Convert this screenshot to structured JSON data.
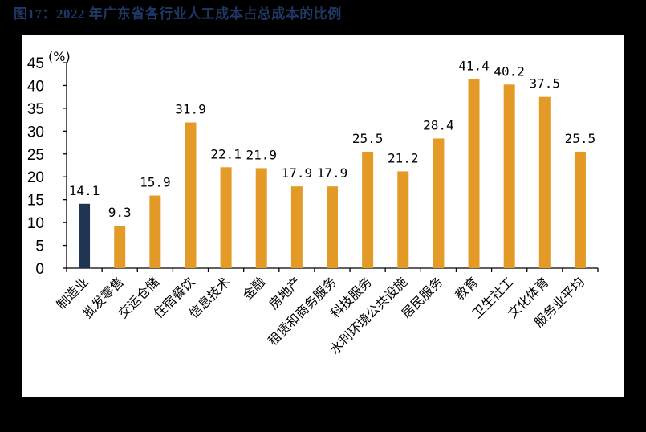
{
  "title": "图17：2022 年广东省各行业人工成本占总成本的比例",
  "chart_data": {
    "type": "bar",
    "title": "图17：2022 年广东省各行业人工成本占总成本的比例",
    "xlabel": "",
    "ylabel": "(%)",
    "ylim": [
      0,
      45
    ],
    "yticks": [
      0,
      5,
      10,
      15,
      20,
      25,
      30,
      35,
      40,
      45
    ],
    "grid": false,
    "legend": "none",
    "categories": [
      "制造业",
      "批发零售",
      "交运仓储",
      "住宿餐饮",
      "信息技术",
      "金融",
      "房地产",
      "租赁和商务服务",
      "科技服务",
      "水利环境公共设施",
      "居民服务",
      "教育",
      "卫生社工",
      "文化体育",
      "服务业平均"
    ],
    "values": [
      14.1,
      9.3,
      15.9,
      31.9,
      22.1,
      21.9,
      17.9,
      17.9,
      25.5,
      21.2,
      28.4,
      41.4,
      40.2,
      37.5,
      25.5
    ],
    "value_labels": [
      "14.1",
      "9.3",
      "15.9",
      "31.9",
      "22.1",
      "21.9",
      "17.9",
      "17.9",
      "25.5",
      "21.2",
      "28.4",
      "41.4",
      "40.2",
      "37.5",
      "25.5"
    ],
    "colors": [
      "#1f3552",
      "#e39a27",
      "#e39a27",
      "#e39a27",
      "#e39a27",
      "#e39a27",
      "#e39a27",
      "#e39a27",
      "#e39a27",
      "#e39a27",
      "#e39a27",
      "#e39a27",
      "#e39a27",
      "#e39a27",
      "#e39a27"
    ]
  },
  "colors": {
    "highlight": "#1f3552",
    "bar": "#e39a27",
    "title": "#1f3864",
    "background": "#000000",
    "panel": "#ffffff"
  }
}
